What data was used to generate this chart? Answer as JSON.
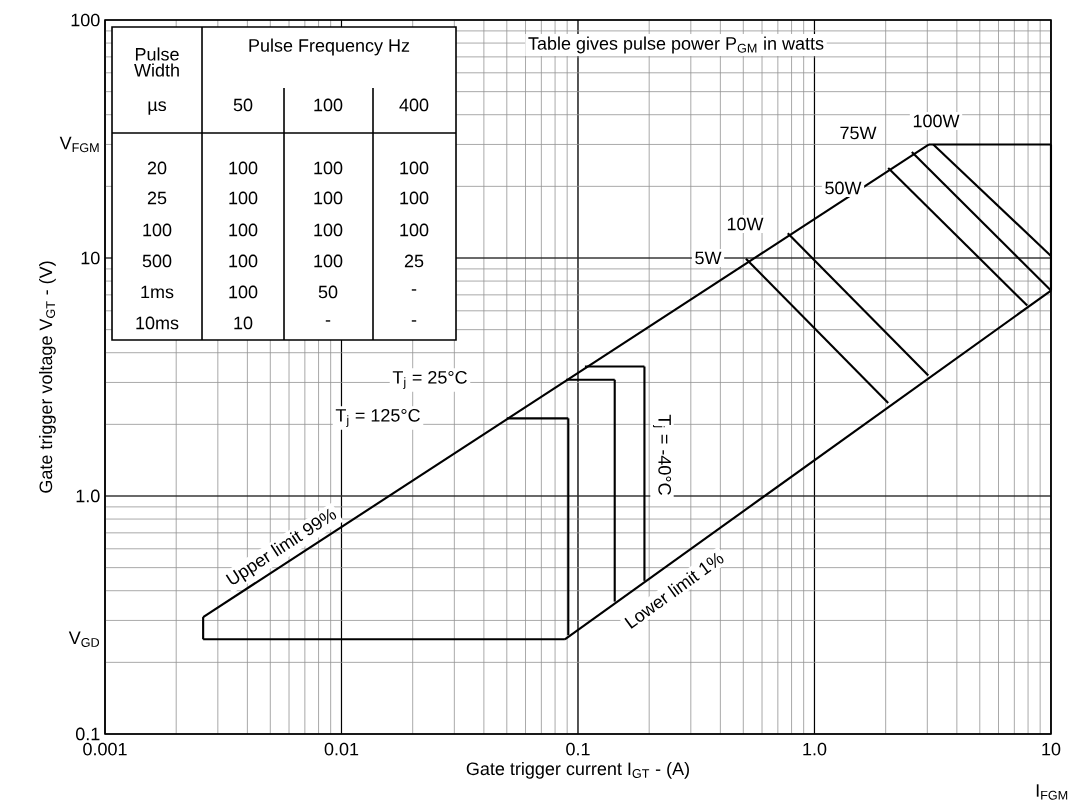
{
  "chart_data": {
    "type": "line",
    "xlabel": "Gate trigger current I$_{GT}$ - (A)",
    "ylabel": "Gate trigger voltage V$_{GT}$ - (V)",
    "log": "xy",
    "grid": true,
    "xlim": [
      0.001,
      10
    ],
    "ylim": [
      0.1,
      100
    ],
    "xticks": [
      0.001,
      0.01,
      0.1,
      {
        "value": 1,
        "label": "1.0"
      },
      10
    ],
    "yticks": [
      0.1,
      {
        "value": 0.25,
        "label": "V$_{GD}$"
      },
      {
        "value": 1,
        "label": "1.0"
      },
      10,
      {
        "value": 30,
        "label": "V$_{FGM}$"
      },
      100
    ],
    "series": [
      {
        "color": "#000000",
        "x": [
          0.0026,
          3.05
        ],
        "values": [
          0.31,
          30
        ]
      },
      {
        "color": "#000000",
        "x": [
          3.05,
          10
        ],
        "values": [
          30,
          30
        ]
      },
      {
        "color": "#000000",
        "x": [
          10,
          10
        ],
        "values": [
          30,
          7.3
        ]
      },
      {
        "color": "#000000",
        "x": [
          0.088,
          10
        ],
        "values": [
          0.25,
          7.3
        ]
      },
      {
        "color": "#000000",
        "x": [
          0.0026,
          0.088
        ],
        "values": [
          0.25,
          0.25
        ]
      },
      {
        "color": "#000000",
        "x": [
          0.0026,
          0.0026
        ],
        "values": [
          0.25,
          0.31
        ]
      },
      {
        "color": "#000000",
        "x": [
          0.05,
          0.091
        ],
        "values": [
          2.12,
          2.12
        ]
      },
      {
        "color": "#000000",
        "x": [
          0.091,
          0.091
        ],
        "values": [
          2.12,
          0.26
        ]
      },
      {
        "color": "#000000",
        "x": [
          0.089,
          0.143
        ],
        "values": [
          3.08,
          3.08
        ]
      },
      {
        "color": "#000000",
        "x": [
          0.143,
          0.143
        ],
        "values": [
          3.08,
          0.36
        ]
      },
      {
        "color": "#000000",
        "x": [
          0.107,
          0.191
        ],
        "values": [
          3.5,
          3.5
        ]
      },
      {
        "color": "#000000",
        "x": [
          0.191,
          0.191
        ],
        "values": [
          3.5,
          0.44
        ]
      },
      {
        "color": "#000000",
        "x": [
          0.513,
          2.05
        ],
        "values": [
          9.93,
          2.46
        ]
      },
      {
        "color": "#000000",
        "x": [
          0.771,
          3.03
        ],
        "values": [
          12.7,
          3.21
        ]
      },
      {
        "color": "#000000",
        "x": [
          2.05,
          7.94
        ],
        "values": [
          23.9,
          6.31
        ]
      },
      {
        "color": "#000000",
        "x": [
          2.58,
          10
        ],
        "values": [
          27.9,
          7.3
        ]
      },
      {
        "color": "#000000",
        "x": [
          3.18,
          10
        ],
        "values": [
          30,
          10.2
        ]
      }
    ],
    "annotations": [
      "Pulse Width",
      "µs",
      "Pulse Frequency Hz",
      "50",
      "100",
      "400",
      "20",
      "100",
      "100",
      "100",
      "25",
      "100",
      "100",
      "100",
      "100",
      "100",
      "100",
      "100",
      "500",
      "100",
      "100",
      "25",
      "1ms",
      "100",
      "50",
      "-",
      "10ms",
      "10",
      "-",
      "-",
      "Table gives pulse power P$_{GM}$ in watts",
      "I$_{FGM}$",
      "5W",
      "10W",
      "50W",
      "75W",
      "100W",
      "T$_{j}$ = 25°C",
      "T$_{j}$ = 125°C",
      "T$_{j}$ = -40°C",
      "Upper limit 99%",
      "Lower limit 1%"
    ]
  }
}
